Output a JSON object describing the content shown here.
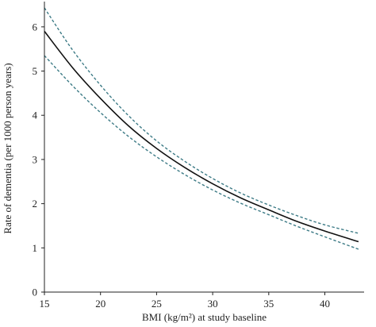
{
  "chart_data": {
    "type": "line",
    "title": "",
    "xlabel": "BMI (kg/m²) at study baseline",
    "ylabel": "Rate of dementia (per 1000 person years)",
    "xlim": [
      15,
      43.5
    ],
    "ylim": [
      0,
      6.5
    ],
    "xticks": [
      15,
      20,
      25,
      30,
      35,
      40
    ],
    "yticks": [
      0,
      1,
      2,
      3,
      4,
      5,
      6
    ],
    "grid": false,
    "legend": "none",
    "series": [
      {
        "role": "estimate",
        "color": "#111111",
        "style": "solid",
        "x": [
          15,
          17.5,
          20,
          22.5,
          25,
          27.5,
          30,
          32.5,
          35,
          37.5,
          40,
          43
        ],
        "y": [
          5.9,
          5.08,
          4.38,
          3.76,
          3.25,
          2.82,
          2.45,
          2.13,
          1.86,
          1.6,
          1.38,
          1.14
        ]
      },
      {
        "role": "upper-ci",
        "color": "#3d7b86",
        "style": "dashed",
        "x": [
          15,
          17.5,
          20,
          22.5,
          25,
          27.5,
          30,
          32.5,
          35,
          37.5,
          40,
          43
        ],
        "y": [
          6.43,
          5.48,
          4.68,
          3.99,
          3.42,
          2.96,
          2.57,
          2.24,
          1.97,
          1.73,
          1.52,
          1.33
        ]
      },
      {
        "role": "lower-ci",
        "color": "#3d7b86",
        "style": "dashed",
        "x": [
          15,
          17.5,
          20,
          22.5,
          25,
          27.5,
          30,
          32.5,
          35,
          37.5,
          40,
          43
        ],
        "y": [
          5.35,
          4.67,
          4.06,
          3.52,
          3.06,
          2.66,
          2.31,
          2.01,
          1.75,
          1.49,
          1.25,
          0.97
        ]
      }
    ]
  }
}
